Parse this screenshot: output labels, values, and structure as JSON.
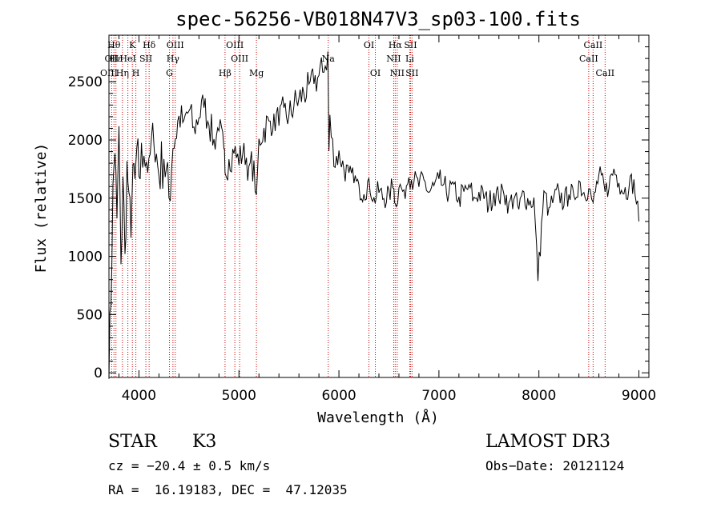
{
  "chart_data": {
    "type": "line",
    "title": "spec-56256-VB018N47V3_sp03-100.fits",
    "xlabel": "Wavelength (Å)",
    "ylabel": "Flux (relative)",
    "xlim": [
      3700,
      9100
    ],
    "ylim": [
      -40,
      2900
    ],
    "xticks": [
      4000,
      5000,
      6000,
      7000,
      8000,
      9000
    ],
    "yticks": [
      0,
      500,
      1000,
      1500,
      2000,
      2500
    ],
    "series": [
      {
        "name": "flux",
        "x": [
          3700,
          3720,
          3740,
          3760,
          3780,
          3800,
          3820,
          3840,
          3860,
          3880,
          3900,
          3920,
          3940,
          3960,
          3980,
          4000,
          4050,
          4100,
          4150,
          4200,
          4250,
          4300,
          4340,
          4400,
          4450,
          4500,
          4550,
          4600,
          4650,
          4700,
          4750,
          4800,
          4850,
          4861,
          4900,
          4950,
          5000,
          5050,
          5100,
          5150,
          5175,
          5200,
          5250,
          5300,
          5350,
          5400,
          5450,
          5500,
          5550,
          5600,
          5650,
          5700,
          5750,
          5800,
          5850,
          5890,
          5900,
          5910,
          5950,
          6000,
          6050,
          6100,
          6150,
          6200,
          6250,
          6300,
          6350,
          6400,
          6450,
          6500,
          6550,
          6563,
          6600,
          6650,
          6700,
          6750,
          6800,
          6850,
          6900,
          6950,
          7000,
          7050,
          7100,
          7150,
          7200,
          7250,
          7300,
          7350,
          7400,
          7450,
          7500,
          7550,
          7600,
          7650,
          7700,
          7750,
          7800,
          7850,
          7900,
          7950,
          7990,
          8050,
          8100,
          8150,
          8200,
          8250,
          8300,
          8350,
          8400,
          8450,
          8498,
          8542,
          8600,
          8662,
          8700,
          8750,
          8800,
          8850,
          8900,
          8950,
          9000
        ],
        "values": [
          0,
          600,
          1600,
          1900,
          1300,
          2100,
          900,
          1700,
          1000,
          1800,
          1500,
          1200,
          1750,
          1650,
          1900,
          1700,
          1900,
          1800,
          2000,
          1700,
          1850,
          1500,
          1950,
          2200,
          2150,
          2250,
          2100,
          2200,
          2300,
          2150,
          2000,
          2100,
          1900,
          1700,
          1850,
          1900,
          1800,
          1950,
          1750,
          1800,
          1500,
          2000,
          2100,
          2150,
          2200,
          2150,
          2250,
          2200,
          2300,
          2350,
          2400,
          2450,
          2500,
          2550,
          2600,
          2750,
          1900,
          2200,
          1800,
          1900,
          1750,
          1700,
          1650,
          1600,
          1550,
          1650,
          1500,
          1550,
          1500,
          1550,
          1600,
          1450,
          1600,
          1550,
          1700,
          1650,
          1600,
          1650,
          1550,
          1600,
          1650,
          1600,
          1550,
          1600,
          1500,
          1550,
          1600,
          1500,
          1550,
          1500,
          1450,
          1550,
          1500,
          1550,
          1450,
          1500,
          1400,
          1550,
          1450,
          1500,
          800,
          1550,
          1400,
          1500,
          1550,
          1450,
          1550,
          1500,
          1650,
          1550,
          1600,
          1450,
          1700,
          1550,
          1600,
          1750,
          1650,
          1550,
          1600,
          1650,
          1300
        ]
      }
    ],
    "lines": [
      {
        "label": "Hθ",
        "x": 3750,
        "row": 0
      },
      {
        "label": "OII",
        "x": 3727,
        "row": 1
      },
      {
        "label": "OIII",
        "x": 3700,
        "row": 2
      },
      {
        "label": "Hε",
        "x": 3770,
        "row": 1
      },
      {
        "label": "Hη",
        "x": 3835,
        "row": 2
      },
      {
        "label": "K",
        "x": 3934,
        "row": 0
      },
      {
        "label": "HeI",
        "x": 3889,
        "row": 1
      },
      {
        "label": "SII",
        "x": 4069,
        "row": 1
      },
      {
        "label": "H",
        "x": 3969,
        "row": 2
      },
      {
        "label": "Hδ",
        "x": 4102,
        "row": 0
      },
      {
        "label": "OIII",
        "x": 4363,
        "row": 0
      },
      {
        "label": "Hγ",
        "x": 4340,
        "row": 1
      },
      {
        "label": "G",
        "x": 4305,
        "row": 2
      },
      {
        "label": "Hβ",
        "x": 4861,
        "row": 2
      },
      {
        "label": "OIII",
        "x": 4959,
        "row": 0
      },
      {
        "label": "OIII",
        "x": 5007,
        "row": 1
      },
      {
        "label": "Mg",
        "x": 5175,
        "row": 2
      },
      {
        "label": "Na",
        "x": 5893,
        "row": 1
      },
      {
        "label": "OI",
        "x": 6300,
        "row": 0
      },
      {
        "label": "OI",
        "x": 6364,
        "row": 2
      },
      {
        "label": "Hα",
        "x": 6563,
        "row": 0
      },
      {
        "label": "NII",
        "x": 6548,
        "row": 1
      },
      {
        "label": "NII",
        "x": 6583,
        "row": 2
      },
      {
        "label": "SII",
        "x": 6716,
        "row": 0
      },
      {
        "label": "Li",
        "x": 6708,
        "row": 1
      },
      {
        "label": "SII",
        "x": 6731,
        "row": 2
      },
      {
        "label": "CaII",
        "x": 8542,
        "row": 0
      },
      {
        "label": "CaII",
        "x": 8498,
        "row": 1
      },
      {
        "label": "CaII",
        "x": 8662,
        "row": 2
      }
    ]
  },
  "info": {
    "class": "STAR",
    "subclass": "K3",
    "survey": "LAMOST DR3",
    "cz": "cz = −20.4 ± 0.5 km/s",
    "obs_date": "Obs−Date: 20121124",
    "radec": "RA =  16.19183, DEC =  47.12035"
  }
}
